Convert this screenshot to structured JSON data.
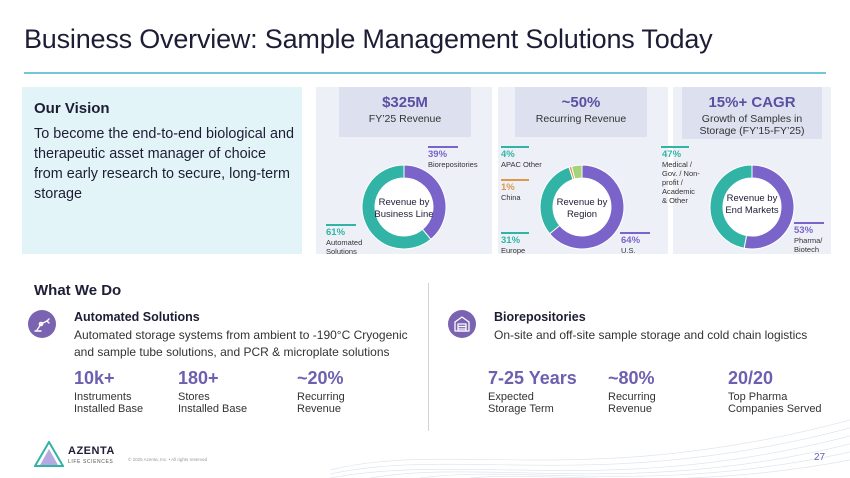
{
  "title": "Business Overview: Sample Management Solutions Today",
  "vision": {
    "heading": "Our Vision",
    "text": "To become the end-to-end biological and therapeutic asset manager of choice from early research to secure, long-term storage"
  },
  "metrics": [
    {
      "big": "$325M",
      "sub": "FY’25 Revenue",
      "donut": {
        "center": [
          "Revenue by",
          "Business Line"
        ],
        "segments": [
          {
            "pct": 39,
            "label": "39%",
            "desc": [
              "Biorepositories"
            ],
            "color": "#7a63c9"
          },
          {
            "pct": 61,
            "label": "61%",
            "desc": [
              "Automated",
              "Solutions"
            ],
            "color": "#31b4a6"
          }
        ]
      }
    },
    {
      "big": "~50%",
      "sub": "Recurring Revenue",
      "donut": {
        "center": [
          "Revenue by",
          "Region"
        ],
        "segments": [
          {
            "pct": 64,
            "label": "64%",
            "desc": [
              "U.S."
            ],
            "color": "#7a63c9"
          },
          {
            "pct": 31,
            "label": "31%",
            "desc": [
              "Europe"
            ],
            "color": "#31b4a6"
          },
          {
            "pct": 1,
            "label": "1%",
            "desc": [
              "China"
            ],
            "color": "#e0974a"
          },
          {
            "pct": 4,
            "label": "4%",
            "desc": [
              "APAC Other"
            ],
            "color": "#a3d37a"
          }
        ]
      }
    },
    {
      "big": "15%+ CAGR",
      "sub": "Growth of Samples in Storage (FY’15-FY’25)",
      "donut": {
        "center": [
          "Revenue by",
          "End Markets"
        ],
        "segments": [
          {
            "pct": 53,
            "label": "53%",
            "desc": [
              "Pharma/",
              "Biotech"
            ],
            "color": "#7a63c9"
          },
          {
            "pct": 47,
            "label": "47%",
            "desc": [
              "Medical /",
              "Gov. / Non-",
              "profit /",
              "Academic",
              "& Other"
            ],
            "color": "#31b4a6"
          }
        ]
      }
    }
  ],
  "what_we_do": {
    "heading": "What We Do",
    "businesses": [
      {
        "icon": "robotic-arm-icon",
        "title": "Automated Solutions",
        "desc": "Automated storage systems from ambient to -190°C Cryogenic and sample tube solutions, and PCR & microplate solutions",
        "stats": [
          {
            "value": "10k+",
            "label": [
              "Instruments",
              "Installed Base"
            ]
          },
          {
            "value": "180+",
            "label": [
              "Stores",
              "Installed Base"
            ]
          },
          {
            "value": "~20%",
            "label": [
              "Recurring",
              "Revenue"
            ]
          }
        ]
      },
      {
        "icon": "storage-facility-icon",
        "title": "Biorepositories",
        "desc": "On-site and off-site sample storage and cold chain logistics",
        "stats": [
          {
            "value": "7-25 Years",
            "label": [
              "Expected",
              "Storage Term"
            ]
          },
          {
            "value": "~80%",
            "label": [
              "Recurring",
              "Revenue"
            ]
          },
          {
            "value": "20/20",
            "label": [
              "Top Pharma",
              "Companies Served"
            ]
          }
        ]
      }
    ]
  },
  "footer": {
    "logo_name": "AZENTA",
    "logo_sub": "LIFE SCIENCES",
    "copyright": "© 2025 Azenta, Inc. • All rights reserved",
    "page": "27"
  }
}
